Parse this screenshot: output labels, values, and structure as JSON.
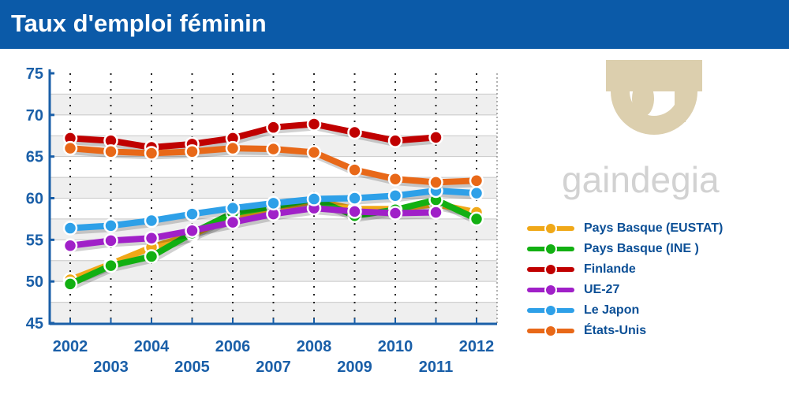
{
  "header": {
    "title": "Taux d'emploi féminin"
  },
  "logo": {
    "text": "gaindegia"
  },
  "chart_data": {
    "type": "line",
    "title": "Taux d'emploi féminin",
    "x": [
      2002,
      2003,
      2004,
      2005,
      2006,
      2007,
      2008,
      2009,
      2010,
      2011,
      2012
    ],
    "x_labels": [
      "2002",
      "2003",
      "2004",
      "2005",
      "2006",
      "2007",
      "2008",
      "2009",
      "2010",
      "2011",
      "2012"
    ],
    "ylim": [
      45,
      75
    ],
    "y_ticks": [
      "45",
      "50",
      "55",
      "60",
      "65",
      "70",
      "75"
    ],
    "grid": true,
    "legend_position": "right",
    "series": [
      {
        "name": "Pays Basque (EUSTAT)",
        "color": "#f0a818",
        "values": [
          50.2,
          52.1,
          54.1,
          55.6,
          57.8,
          58.7,
          59.7,
          58.7,
          58.7,
          59.3,
          58.3
        ]
      },
      {
        "name": "Pays Basque (INE )",
        "color": "#12b012",
        "values": [
          49.7,
          51.9,
          53.0,
          55.8,
          58.2,
          59.0,
          59.9,
          57.9,
          58.6,
          59.8,
          57.5
        ]
      },
      {
        "name": "Finlande",
        "color": "#c00000",
        "values": [
          67.2,
          66.9,
          66.1,
          66.5,
          67.2,
          68.5,
          68.9,
          67.9,
          66.9,
          67.3,
          null
        ]
      },
      {
        "name": "UE-27",
        "color": "#a020c8",
        "values": [
          54.3,
          54.9,
          55.2,
          56.1,
          57.1,
          58.1,
          58.8,
          58.4,
          58.2,
          58.3,
          null
        ]
      },
      {
        "name": "Le Japon",
        "color": "#2ea0e8",
        "values": [
          56.4,
          56.7,
          57.3,
          58.1,
          58.8,
          59.4,
          59.9,
          60.0,
          60.3,
          60.9,
          60.6
        ]
      },
      {
        "name": "États-Unis",
        "color": "#e86818",
        "values": [
          66.0,
          65.6,
          65.4,
          65.6,
          66.0,
          65.9,
          65.5,
          63.4,
          62.3,
          61.9,
          62.1
        ]
      }
    ]
  }
}
